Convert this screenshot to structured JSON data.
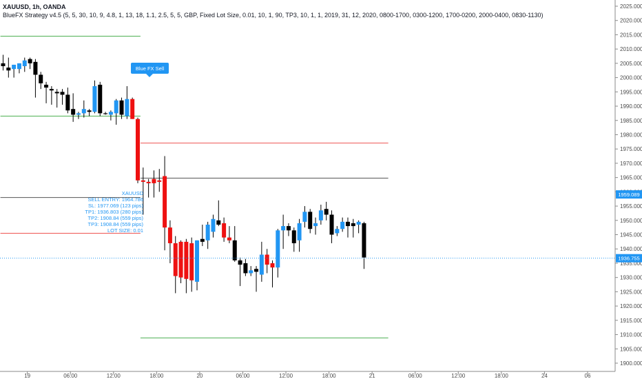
{
  "header": {
    "title": "XAUUSD, 1h, OANDA",
    "strategy": "BlueFX Strategy v4.5 (5, 5, 30, 10, 9, 4.8, 1, 13, 18, 1.1, 2.5, 5, 5, GBP, Fixed Lot Size, 0.01, 10, 1, 90, TP3, 10, 1, 1, 2019, 31, 12, 2020, 0800-1700, 0300-1200, 1700-0200, 2000-0400, 0830-1130)"
  },
  "colors": {
    "blue": "#2196f3",
    "red": "#ee1111",
    "black": "#000000",
    "green": "#4caf50",
    "sl_red": "#ef5350",
    "entry_grey": "#555555",
    "price_tag": "#2196f3"
  },
  "signal": {
    "label": "Blue FX Sell"
  },
  "info_box": {
    "symbol": "XAUUSD",
    "sell_entry": "SELL ENTRY: 1964.786",
    "sl": "SL: 1977.069 (123 pips)",
    "tp1": "TP1: 1936.803 (280 pips)",
    "tp2": "TP2: 1908.84 (559 pips)",
    "tp3": "TP3: 1908.84 (559 pips)",
    "lot": "LOT SIZE: 0.01"
  },
  "price_tags": {
    "upper": {
      "value": 1959.089,
      "label": "1959.089"
    },
    "lower": {
      "value": 1936.755,
      "label": "1936.755"
    }
  },
  "chart_data": {
    "type": "candlestick",
    "symbol": "XAUUSD",
    "timeframe": "1h",
    "ylim": [
      1897,
      2027
    ],
    "yticks": [
      2025,
      2020,
      2015,
      2010,
      2005,
      2000,
      1995,
      1990,
      1985,
      1980,
      1975,
      1970,
      1965,
      1960,
      1955,
      1950,
      1945,
      1940,
      1935,
      1930,
      1925,
      1920,
      1915,
      1910,
      1905,
      1900
    ],
    "ytick_labels": [
      "2025.000",
      "2020.000",
      "2015.000",
      "2010.000",
      "2005.000",
      "2000.000",
      "1995.000",
      "1990.000",
      "1985.000",
      "1980.000",
      "1975.000",
      "1970.000",
      "1965.000",
      "1960.000",
      "1955.000",
      "1950.000",
      "1945.000",
      "1940.000",
      "1935.000",
      "1930.000",
      "1925.000",
      "1920.000",
      "1915.000",
      "1910.000",
      "1905.000",
      "1900.000"
    ],
    "xticks": [
      {
        "bar": 4.5,
        "label": "19"
      },
      {
        "bar": 12.5,
        "label": "06:00"
      },
      {
        "bar": 20.5,
        "label": "12:00"
      },
      {
        "bar": 28.5,
        "label": "18:00"
      },
      {
        "bar": 36.5,
        "label": "20"
      },
      {
        "bar": 44.5,
        "label": "06:00"
      },
      {
        "bar": 52.5,
        "label": "12:00"
      },
      {
        "bar": 60.5,
        "label": "18:00"
      },
      {
        "bar": 68.5,
        "label": "21"
      },
      {
        "bar": 76.5,
        "label": "06:00"
      },
      {
        "bar": 84.5,
        "label": "12:00"
      },
      {
        "bar": 92.5,
        "label": "18:00"
      },
      {
        "bar": 100.5,
        "label": "24"
      },
      {
        "bar": 108.5,
        "label": "06"
      }
    ],
    "candles": [
      {
        "o": 2005.0,
        "h": 2008.0,
        "l": 2002.5,
        "c": 2004.0,
        "color": "black"
      },
      {
        "o": 2003.5,
        "h": 2007.0,
        "l": 2000.0,
        "c": 2002.5,
        "color": "black"
      },
      {
        "o": 2003.0,
        "h": 2004.5,
        "l": 2000.0,
        "c": 2004.5,
        "color": "blue"
      },
      {
        "o": 2003.0,
        "h": 2005.0,
        "l": 2001.5,
        "c": 2005.0,
        "color": "blue"
      },
      {
        "o": 2004.0,
        "h": 2007.0,
        "l": 2002.0,
        "c": 2006.0,
        "color": "blue"
      },
      {
        "o": 2006.5,
        "h": 2007.0,
        "l": 2003.0,
        "c": 2005.0,
        "color": "black"
      },
      {
        "o": 2005.5,
        "h": 2006.5,
        "l": 1993.0,
        "c": 2001.0,
        "color": "black"
      },
      {
        "o": 2001.0,
        "h": 2002.0,
        "l": 1996.0,
        "c": 1998.0,
        "color": "black"
      },
      {
        "o": 1997.5,
        "h": 1998.5,
        "l": 1991.0,
        "c": 1996.5,
        "color": "black"
      },
      {
        "o": 1996.0,
        "h": 1997.0,
        "l": 1990.5,
        "c": 1995.5,
        "color": "black"
      },
      {
        "o": 1995.0,
        "h": 1996.0,
        "l": 1989.5,
        "c": 1994.5,
        "color": "black"
      },
      {
        "o": 1995.0,
        "h": 1996.0,
        "l": 1990.5,
        "c": 1994.0,
        "color": "black"
      },
      {
        "o": 1994.0,
        "h": 1996.5,
        "l": 1987.5,
        "c": 1988.5,
        "color": "black"
      },
      {
        "o": 1989.0,
        "h": 1994.5,
        "l": 1984.5,
        "c": 1987.0,
        "color": "black"
      },
      {
        "o": 1987.0,
        "h": 1988.0,
        "l": 1985.5,
        "c": 1987.5,
        "color": "blue"
      },
      {
        "o": 1987.5,
        "h": 1992.0,
        "l": 1986.0,
        "c": 1989.0,
        "color": "blue"
      },
      {
        "o": 1988.5,
        "h": 1989.0,
        "l": 1986.5,
        "c": 1988.0,
        "color": "black"
      },
      {
        "o": 1988.0,
        "h": 1999.0,
        "l": 1987.5,
        "c": 1997.0,
        "color": "blue"
      },
      {
        "o": 1997.5,
        "h": 1998.5,
        "l": 1986.5,
        "c": 1987.5,
        "color": "black"
      },
      {
        "o": 1987.5,
        "h": 1988.0,
        "l": 1987.0,
        "c": 1987.5,
        "color": "black"
      },
      {
        "o": 1987.0,
        "h": 1988.5,
        "l": 1985.0,
        "c": 1988.0,
        "color": "blue"
      },
      {
        "o": 1987.5,
        "h": 1992.5,
        "l": 1983.5,
        "c": 1992.0,
        "color": "blue"
      },
      {
        "o": 1992.0,
        "h": 1993.0,
        "l": 1985.5,
        "c": 1987.0,
        "color": "black"
      },
      {
        "o": 1986.5,
        "h": 1997.0,
        "l": 1985.5,
        "c": 1992.5,
        "color": "blue"
      },
      {
        "o": 1992.5,
        "h": 1993.0,
        "l": 1985.5,
        "c": 1985.5,
        "color": "red"
      },
      {
        "o": 1985.5,
        "h": 1986.0,
        "l": 1963.0,
        "c": 1964.0,
        "color": "red"
      },
      {
        "o": 1964.0,
        "h": 1968.5,
        "l": 1952.0,
        "c": 1963.5,
        "color": "red"
      },
      {
        "o": 1963.5,
        "h": 1964.5,
        "l": 1958.0,
        "c": 1963.0,
        "color": "red"
      },
      {
        "o": 1963.0,
        "h": 1967.5,
        "l": 1958.0,
        "c": 1964.5,
        "color": "red"
      },
      {
        "o": 1964.0,
        "h": 1968.0,
        "l": 1960.0,
        "c": 1963.5,
        "color": "red"
      },
      {
        "o": 1965.5,
        "h": 1972.5,
        "l": 1939.5,
        "c": 1947.5,
        "color": "red"
      },
      {
        "o": 1947.5,
        "h": 1950.0,
        "l": 1935.0,
        "c": 1942.0,
        "color": "red"
      },
      {
        "o": 1942.0,
        "h": 1944.5,
        "l": 1924.5,
        "c": 1930.5,
        "color": "red"
      },
      {
        "o": 1942.5,
        "h": 1943.0,
        "l": 1928.0,
        "c": 1930.0,
        "color": "red"
      },
      {
        "o": 1942.5,
        "h": 1943.5,
        "l": 1924.5,
        "c": 1929.5,
        "color": "red"
      },
      {
        "o": 1942.0,
        "h": 1944.0,
        "l": 1925.0,
        "c": 1929.0,
        "color": "red"
      },
      {
        "o": 1928.5,
        "h": 1943.0,
        "l": 1925.5,
        "c": 1943.0,
        "color": "blue"
      },
      {
        "o": 1942.5,
        "h": 1948.5,
        "l": 1941.0,
        "c": 1943.5,
        "color": "black"
      },
      {
        "o": 1943.0,
        "h": 1949.5,
        "l": 1940.0,
        "c": 1948.5,
        "color": "blue"
      },
      {
        "o": 1946.0,
        "h": 1952.0,
        "l": 1944.0,
        "c": 1950.5,
        "color": "blue"
      },
      {
        "o": 1950.0,
        "h": 1957.0,
        "l": 1948.0,
        "c": 1948.5,
        "color": "black"
      },
      {
        "o": 1949.0,
        "h": 1951.0,
        "l": 1942.5,
        "c": 1944.0,
        "color": "red"
      },
      {
        "o": 1944.0,
        "h": 1948.0,
        "l": 1942.0,
        "c": 1943.0,
        "color": "red"
      },
      {
        "o": 1943.0,
        "h": 1948.0,
        "l": 1935.5,
        "c": 1936.0,
        "color": "black"
      },
      {
        "o": 1936.0,
        "h": 1937.0,
        "l": 1927.0,
        "c": 1934.5,
        "color": "black"
      },
      {
        "o": 1935.0,
        "h": 1936.5,
        "l": 1930.5,
        "c": 1931.5,
        "color": "black"
      },
      {
        "o": 1931.5,
        "h": 1934.0,
        "l": 1930.5,
        "c": 1932.5,
        "color": "blue"
      },
      {
        "o": 1933.0,
        "h": 1934.0,
        "l": 1925.0,
        "c": 1932.0,
        "color": "black"
      },
      {
        "o": 1931.0,
        "h": 1942.5,
        "l": 1928.5,
        "c": 1938.0,
        "color": "blue"
      },
      {
        "o": 1938.0,
        "h": 1940.0,
        "l": 1931.5,
        "c": 1934.5,
        "color": "red"
      },
      {
        "o": 1935.0,
        "h": 1936.0,
        "l": 1926.5,
        "c": 1933.5,
        "color": "red"
      },
      {
        "o": 1933.5,
        "h": 1947.0,
        "l": 1930.0,
        "c": 1946.5,
        "color": "blue"
      },
      {
        "o": 1946.5,
        "h": 1952.0,
        "l": 1940.0,
        "c": 1948.0,
        "color": "blue"
      },
      {
        "o": 1948.0,
        "h": 1949.0,
        "l": 1944.5,
        "c": 1946.5,
        "color": "black"
      },
      {
        "o": 1946.5,
        "h": 1947.5,
        "l": 1939.0,
        "c": 1942.0,
        "color": "black"
      },
      {
        "o": 1943.0,
        "h": 1950.5,
        "l": 1939.0,
        "c": 1949.0,
        "color": "blue"
      },
      {
        "o": 1949.5,
        "h": 1955.0,
        "l": 1947.5,
        "c": 1953.0,
        "color": "blue"
      },
      {
        "o": 1953.0,
        "h": 1954.0,
        "l": 1945.5,
        "c": 1947.0,
        "color": "black"
      },
      {
        "o": 1948.0,
        "h": 1951.0,
        "l": 1945.0,
        "c": 1949.0,
        "color": "blue"
      },
      {
        "o": 1950.0,
        "h": 1955.5,
        "l": 1948.5,
        "c": 1953.5,
        "color": "blue"
      },
      {
        "o": 1954.0,
        "h": 1956.5,
        "l": 1950.0,
        "c": 1952.0,
        "color": "black"
      },
      {
        "o": 1952.0,
        "h": 1953.5,
        "l": 1942.0,
        "c": 1945.0,
        "color": "black"
      },
      {
        "o": 1947.0,
        "h": 1948.0,
        "l": 1944.5,
        "c": 1945.5,
        "color": "blue"
      },
      {
        "o": 1947.0,
        "h": 1951.0,
        "l": 1946.0,
        "c": 1949.5,
        "color": "blue"
      },
      {
        "o": 1949.5,
        "h": 1951.0,
        "l": 1944.0,
        "c": 1948.0,
        "color": "black"
      },
      {
        "o": 1949.0,
        "h": 1950.5,
        "l": 1944.0,
        "c": 1948.0,
        "color": "black"
      },
      {
        "o": 1948.5,
        "h": 1950.0,
        "l": 1945.5,
        "c": 1949.5,
        "color": "blue"
      },
      {
        "o": 1949.0,
        "h": 1949.5,
        "l": 1933.0,
        "c": 1937.0,
        "color": "black"
      }
    ],
    "levels": [
      {
        "name": "tp-prev",
        "value": 2014.5,
        "from_bar": -0.5,
        "to_bar": 25.5,
        "color": "green"
      },
      {
        "name": "level-prev",
        "value": 1986.5,
        "from_bar": -0.5,
        "to_bar": 25.5,
        "color": "green"
      },
      {
        "name": "entry-prev",
        "value": 1958.0,
        "from_bar": -0.5,
        "to_bar": 25.5,
        "color": "entry_grey"
      },
      {
        "name": "sl-prev",
        "value": 1945.5,
        "from_bar": -0.5,
        "to_bar": 25.5,
        "color": "sl_red"
      },
      {
        "name": "sl",
        "value": 1977.069,
        "from_bar": 25.5,
        "to_bar": 71.5,
        "color": "sl_red"
      },
      {
        "name": "entry",
        "value": 1964.786,
        "from_bar": 25.5,
        "to_bar": 71.5,
        "color": "entry_grey"
      },
      {
        "name": "tp2-tp3",
        "value": 1908.84,
        "from_bar": 25.5,
        "to_bar": 71.5,
        "color": "green"
      }
    ]
  }
}
